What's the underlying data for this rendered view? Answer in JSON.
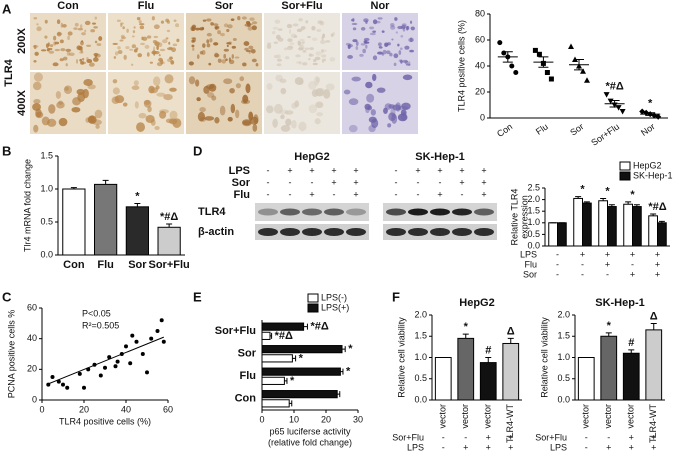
{
  "panel_labels": [
    "A",
    "B",
    "C",
    "D",
    "E",
    "F"
  ],
  "histology": {
    "marker": "TLR4",
    "columns": [
      "Con",
      "Flu",
      "Sor",
      "Sor+Flu",
      "Nor"
    ],
    "magnifications": [
      "200X",
      "400X"
    ]
  },
  "blot": {
    "cell_lines": [
      "HepG2",
      "SK-Hep-1"
    ],
    "conditions": [
      {
        "name": "LPS",
        "signs": [
          "-",
          "+",
          "+",
          "+",
          "+"
        ]
      },
      {
        "name": "Sor",
        "signs": [
          "-",
          "-",
          "-",
          "+",
          "+"
        ]
      },
      {
        "name": "Flu",
        "signs": [
          "-",
          "-",
          "+",
          "-",
          "+"
        ]
      }
    ],
    "bands": [
      "TLR4",
      "β-actin"
    ]
  },
  "chart_data": [
    {
      "type": "dot",
      "ylabel": "TLR4 positive cells (%)",
      "categories": [
        "Con",
        "Flu",
        "Sor",
        "Sor+Flu",
        "Nor"
      ],
      "points": [
        [
          58,
          50,
          47,
          40,
          35
        ],
        [
          52,
          49,
          42,
          35,
          30
        ],
        [
          55,
          45,
          40,
          36,
          29
        ],
        [
          18,
          13,
          10,
          8,
          5
        ],
        [
          5,
          4,
          3,
          2,
          1
        ]
      ],
      "means": [
        47,
        43,
        41,
        11,
        3
      ],
      "errors": [
        4,
        4,
        4,
        2.5,
        1
      ],
      "markers": [
        "circle",
        "square",
        "triangle",
        "triangle-down",
        "diamond"
      ],
      "color": "#000000",
      "ylim": [
        0,
        80
      ],
      "yticks": [
        0,
        20,
        40,
        60,
        80
      ],
      "annotations": [
        null,
        null,
        null,
        "*#Δ",
        "*"
      ]
    },
    {
      "type": "bar",
      "ylabel": "Tlr4 mRNA fold change",
      "categories": [
        "Con",
        "Flu",
        "Sor",
        "Sor+Flu"
      ],
      "series": [
        {
          "values": [
            1.0,
            1.07,
            0.73,
            0.42
          ],
          "errors": [
            0.02,
            0.06,
            0.05,
            0.05
          ],
          "colors": [
            "#ffffff",
            "#777777",
            "#2a2a2a",
            "#cccccc"
          ]
        }
      ],
      "ylim": [
        0,
        1.5
      ],
      "yticks": [
        {
          "value": 0,
          "label": "0.0"
        },
        0.5,
        {
          "value": 1,
          "label": "1.0"
        },
        1.5
      ],
      "annotations": [
        null,
        null,
        "*",
        "*#Δ"
      ]
    },
    {
      "type": "bar",
      "ylabel": [
        "Relative TLR4",
        "expression"
      ],
      "series": [
        {
          "name": "HepG2",
          "color": "#ffffff",
          "values": [
            1,
            2.05,
            1.95,
            1.8,
            1.3
          ],
          "errors": [
            0,
            0.08,
            0.1,
            0.1,
            0.08
          ]
        },
        {
          "name": "SK-Hep-1",
          "color": "#111111",
          "values": [
            1,
            1.85,
            1.7,
            1.7,
            1.0
          ],
          "errors": [
            0,
            0.05,
            0.08,
            0.08,
            0.06
          ]
        }
      ],
      "ylim": [
        0,
        2.5
      ],
      "yticks": [
        {
          "value": 0,
          "label": "0.0"
        },
        0.5,
        {
          "value": 1,
          "label": "1.0"
        },
        1.5,
        {
          "value": 2,
          "label": "2.0"
        },
        2.5
      ],
      "conditions": [
        {
          "name": "LPS",
          "signs": [
            "-",
            "+",
            "+",
            "+",
            "+"
          ]
        },
        {
          "name": "Flu",
          "signs": [
            "-",
            "-",
            "+",
            "-",
            "+"
          ]
        },
        {
          "name": "Sor",
          "signs": [
            "-",
            "-",
            "-",
            "+",
            "+"
          ]
        }
      ],
      "annotations": [
        null,
        "*",
        "*",
        "*",
        "*#Δ"
      ],
      "legend": "top-right"
    },
    {
      "type": "scatter",
      "xlabel": "TLR4 positive cells (%)",
      "ylabel": "PCNA positive cells %",
      "x": [
        3,
        5,
        8,
        10,
        12,
        18,
        20,
        22,
        25,
        28,
        30,
        32,
        35,
        36,
        38,
        40,
        42,
        43,
        45,
        48,
        50,
        52,
        55,
        57,
        58
      ],
      "y": [
        10,
        15,
        12,
        10,
        8,
        17,
        8,
        20,
        23,
        16,
        21,
        28,
        22,
        25,
        30,
        35,
        24,
        42,
        38,
        30,
        18,
        40,
        45,
        52,
        38
      ],
      "trend_line": {
        "x": [
          3,
          58
        ],
        "y": [
          10.5,
          41
        ]
      },
      "color": "#000000",
      "xlim": [
        0,
        60
      ],
      "ylim": [
        0,
        60
      ],
      "xticks": [
        0,
        20,
        40,
        60
      ],
      "yticks": [
        0,
        20,
        40,
        60
      ],
      "annotations": [
        "P<0.05",
        "R²=0.505"
      ]
    },
    {
      "type": "bar",
      "orientation": "horizontal",
      "xlabel": [
        "p65 luciferse activity",
        "(relative fold change)"
      ],
      "categories": [
        "Con",
        "Flu",
        "Sor",
        "Sor+Flu"
      ],
      "series": [
        {
          "name": "LPS(-)",
          "color": "#ffffff",
          "values": [
            8.5,
            7,
            9.5,
            2.5
          ],
          "errors": [
            0.8,
            0.8,
            1,
            0.5
          ],
          "annotations": [
            null,
            "*",
            "*",
            "*#Δ"
          ]
        },
        {
          "name": "LPS(+)",
          "color": "#111111",
          "values": [
            23.5,
            24.5,
            25,
            13
          ],
          "errors": [
            0.8,
            0.8,
            1,
            1.2
          ],
          "annotations": [
            null,
            "*",
            "*",
            "*#Δ"
          ]
        }
      ],
      "xlim": [
        0,
        30
      ],
      "xticks": [
        0,
        10,
        20,
        30
      ],
      "legend": "top-right"
    },
    {
      "type": "bar",
      "title": "HepG2",
      "ylabel": "Relative cell viability",
      "categories": [
        "vector",
        "vector",
        "vector",
        "TLR4-WT"
      ],
      "rotate_categories": true,
      "series": [
        {
          "values": [
            1.0,
            1.45,
            0.88,
            1.33
          ],
          "errors": [
            0,
            0.1,
            0.12,
            0.12
          ],
          "colors": [
            "#ffffff",
            "#666666",
            "#111111",
            "#cccccc"
          ]
        }
      ],
      "ylim": [
        0,
        2
      ],
      "yticks": [
        {
          "value": 0,
          "label": "0.0"
        },
        0.5,
        {
          "value": 1,
          "label": "1.0"
        },
        1.5,
        {
          "value": 2,
          "label": "2.0"
        }
      ],
      "conditions": [
        {
          "name": "Sor+Flu",
          "signs": [
            "-",
            "-",
            "+",
            "+"
          ]
        },
        {
          "name": "LPS",
          "signs": [
            "-",
            "+",
            "+",
            "+"
          ]
        }
      ],
      "annotations": [
        null,
        "*",
        "#",
        "Δ"
      ]
    },
    {
      "type": "bar",
      "title": "SK-Hep-1",
      "ylabel": "Relative cell viability",
      "categories": [
        "vector",
        "vector",
        "vector",
        "TLR4-WT"
      ],
      "rotate_categories": true,
      "series": [
        {
          "values": [
            1.0,
            1.5,
            1.1,
            1.65
          ],
          "errors": [
            0,
            0.08,
            0.08,
            0.15
          ],
          "colors": [
            "#ffffff",
            "#666666",
            "#111111",
            "#cccccc"
          ]
        }
      ],
      "ylim": [
        0,
        2
      ],
      "yticks": [
        {
          "value": 0,
          "label": "0.0"
        },
        0.5,
        {
          "value": 1,
          "label": "1.0"
        },
        1.5,
        {
          "value": 2,
          "label": "2.0"
        }
      ],
      "conditions": [
        {
          "name": "Sor+Flu",
          "signs": [
            "-",
            "-",
            "+",
            "+"
          ]
        },
        {
          "name": "LPS",
          "signs": [
            "-",
            "+",
            "+",
            "+"
          ]
        }
      ],
      "annotations": [
        null,
        "*",
        "#",
        "Δ"
      ]
    }
  ]
}
